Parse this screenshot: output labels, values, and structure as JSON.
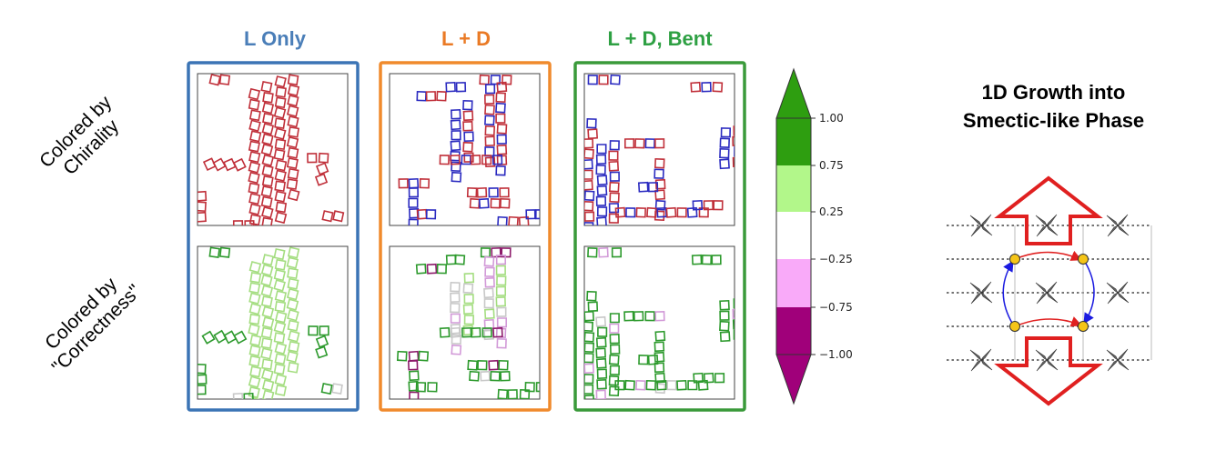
{
  "columns": [
    {
      "title": "L Only",
      "color": "#4a7eb8",
      "frame_color": "#3b74b5"
    },
    {
      "title": "L + D",
      "color": "#ea7a25",
      "frame_color": "#f08a2c"
    },
    {
      "title": "L + D, Bent",
      "color": "#2ea043",
      "frame_color": "#3a9a3a"
    }
  ],
  "row_labels": {
    "chirality": [
      "Colored by",
      "Chirality"
    ],
    "correctness": [
      "Colored by",
      "\"Correctness\""
    ]
  },
  "colors": {
    "chirality_L": "#c0303a",
    "chirality_D": "#2b2bc0",
    "correct_high": "#2d9a2d",
    "correct_mid": "#a4dd80",
    "neutral": "#c8c8c8",
    "wrong_mid": "#d29ad8",
    "wrong_high": "#8c1a6a"
  },
  "colorbar": {
    "ticks": [
      "1.00",
      "0.75",
      "0.25",
      "−0.25",
      "−0.75",
      "−1.00"
    ],
    "bands": [
      "#2e9e10",
      "#b2f78a",
      "#ffffff",
      "#f9aaf9",
      "#a0007a"
    ]
  },
  "phase_panel": {
    "title_lines": [
      "1D Growth into",
      "Smectic-like Phase"
    ],
    "arrow_color": "#e02020",
    "node_color": "#f5c518",
    "red_link_color": "#e02020",
    "blue_link_color": "#1a1ae0"
  }
}
